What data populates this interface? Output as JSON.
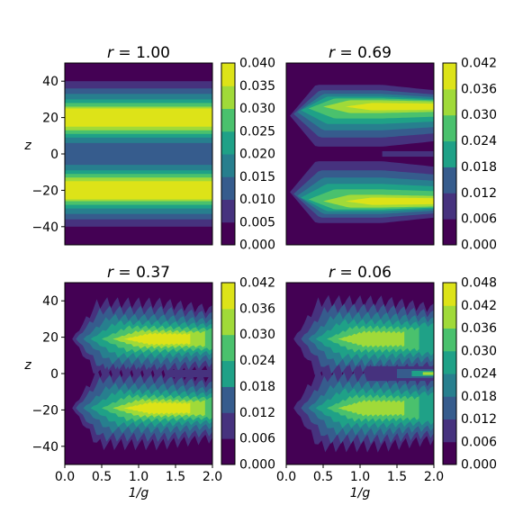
{
  "chart_data": [
    {
      "type": "heatmap",
      "title_var": "r",
      "title_eq": " = ",
      "title_num": "1.00",
      "xlabel": "",
      "ylabel": "z",
      "xlim": [
        0.0,
        2.0
      ],
      "ylim": [
        -50,
        50
      ],
      "yticks": [
        "40",
        "20",
        "0",
        "−20",
        "−40"
      ],
      "xticks": [],
      "colorbar": {
        "levels": [
          "0.000",
          "0.005",
          "0.010",
          "0.015",
          "0.020",
          "0.025",
          "0.030",
          "0.035",
          "0.040"
        ],
        "min": 0.0,
        "max": 0.04
      }
    },
    {
      "type": "heatmap",
      "title_var": "r",
      "title_eq": " = ",
      "title_num": "0.69",
      "xlabel": "",
      "ylabel": "",
      "xlim": [
        0.0,
        2.0
      ],
      "ylim": [
        -50,
        50
      ],
      "yticks": [],
      "xticks": [],
      "colorbar": {
        "levels": [
          "0.000",
          "0.006",
          "0.012",
          "0.018",
          "0.024",
          "0.030",
          "0.036",
          "0.042"
        ],
        "min": 0.0,
        "max": 0.042
      }
    },
    {
      "type": "heatmap",
      "title_var": "r",
      "title_eq": " = ",
      "title_num": "0.37",
      "xlabel": "1/g",
      "ylabel": "z",
      "xlim": [
        0.0,
        2.0
      ],
      "ylim": [
        -50,
        50
      ],
      "yticks": [
        "40",
        "20",
        "0",
        "−20",
        "−40"
      ],
      "xticks": [
        "0.0",
        "0.5",
        "1.0",
        "1.5",
        "2.0"
      ],
      "colorbar": {
        "levels": [
          "0.000",
          "0.006",
          "0.012",
          "0.018",
          "0.024",
          "0.030",
          "0.036",
          "0.042"
        ],
        "min": 0.0,
        "max": 0.042
      }
    },
    {
      "type": "heatmap",
      "title_var": "r",
      "title_eq": " = ",
      "title_num": "0.06",
      "xlabel": "1/g",
      "ylabel": "",
      "xlim": [
        0.0,
        2.0
      ],
      "ylim": [
        -50,
        50
      ],
      "yticks": [],
      "xticks": [
        "0.0",
        "0.5",
        "1.0",
        "1.5",
        "2.0"
      ],
      "colorbar": {
        "levels": [
          "0.000",
          "0.006",
          "0.012",
          "0.018",
          "0.024",
          "0.030",
          "0.036",
          "0.042",
          "0.048"
        ],
        "min": 0.0,
        "max": 0.048
      }
    }
  ],
  "colors": [
    "#440154",
    "#46327e",
    "#365c8d",
    "#277f8e",
    "#1fa187",
    "#4ac16d",
    "#a0da39",
    "#dde318"
  ]
}
